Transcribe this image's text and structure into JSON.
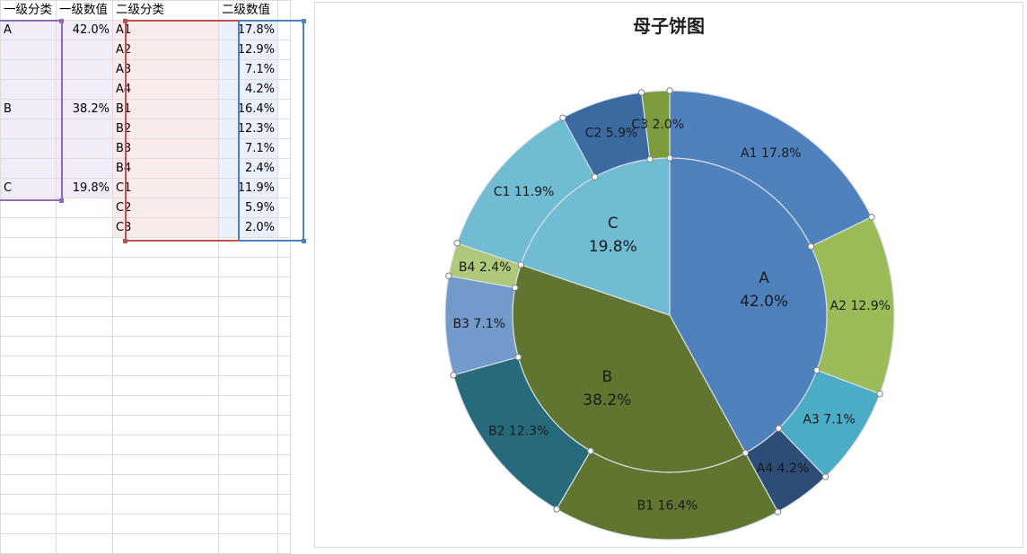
{
  "sheet": {
    "headers": [
      "一级分类",
      "一级数值",
      "二级分类",
      "二级数值"
    ],
    "rows": [
      [
        "A",
        "42.0%",
        "A1",
        "17.8%"
      ],
      [
        "",
        "",
        "A2",
        "12.9%"
      ],
      [
        "",
        "",
        "A3",
        "7.1%"
      ],
      [
        "",
        "",
        "A4",
        "4.2%"
      ],
      [
        "B",
        "38.2%",
        "B1",
        "16.4%"
      ],
      [
        "",
        "",
        "B2",
        "12.3%"
      ],
      [
        "",
        "",
        "B3",
        "7.1%"
      ],
      [
        "",
        "",
        "B4",
        "2.4%"
      ],
      [
        "C",
        "19.8%",
        "C1",
        "11.9%"
      ],
      [
        "",
        "",
        "C2",
        "5.9%"
      ],
      [
        "",
        "",
        "C3",
        "2.0%"
      ],
      [
        "",
        "",
        "",
        ""
      ],
      [
        "",
        "",
        "",
        ""
      ],
      [
        "",
        "",
        "",
        ""
      ],
      [
        "",
        "",
        "",
        ""
      ],
      [
        "",
        "",
        "",
        ""
      ],
      [
        "",
        "",
        "",
        ""
      ],
      [
        "",
        "",
        "",
        ""
      ],
      [
        "",
        "",
        "",
        ""
      ],
      [
        "",
        "",
        "",
        ""
      ],
      [
        "",
        "",
        "",
        ""
      ],
      [
        "",
        "",
        "",
        ""
      ],
      [
        "",
        "",
        "",
        ""
      ],
      [
        "",
        "",
        "",
        ""
      ],
      [
        "",
        "",
        "",
        ""
      ],
      [
        "",
        "",
        "",
        ""
      ],
      [
        "",
        "",
        "",
        ""
      ]
    ]
  },
  "chart_data": {
    "type": "pie",
    "title": "母子饼图",
    "inner": {
      "categories": [
        "A",
        "B",
        "C"
      ],
      "values": [
        42.0,
        38.2,
        19.8
      ],
      "labels": [
        "42.0%",
        "38.2%",
        "19.8%"
      ],
      "colors": [
        "#4f81bd",
        "#5f7530",
        "#70bcd2"
      ]
    },
    "outer": {
      "categories": [
        "A1",
        "A2",
        "A3",
        "A4",
        "B1",
        "B2",
        "B3",
        "B4",
        "C1",
        "C2",
        "C3"
      ],
      "values": [
        17.8,
        12.9,
        7.1,
        4.2,
        16.4,
        12.3,
        7.1,
        2.4,
        11.9,
        5.9,
        2.0
      ],
      "labels": [
        "17.8%",
        "12.9%",
        "7.1%",
        "4.2%",
        "16.4%",
        "12.3%",
        "7.1%",
        "2.4%",
        "11.9%",
        "5.9%",
        "2.0%"
      ],
      "colors": [
        "#4f81bd",
        "#9bbb59",
        "#4bacc6",
        "#2c4d75",
        "#5f7530",
        "#276a7c",
        "#729aca",
        "#afc97a",
        "#70bcd2",
        "#3a6aa0",
        "#7d9b3d"
      ]
    },
    "legend": "none"
  }
}
